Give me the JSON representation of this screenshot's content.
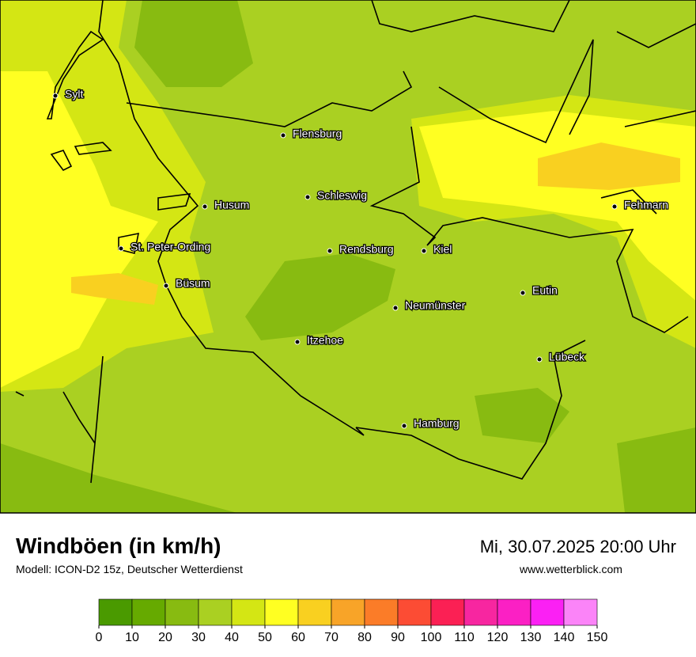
{
  "title": "Windböen (in km/h)",
  "model": "Modell: ICON-D2 15z, Deutscher Wetterdienst",
  "datetime": "Mi, 30.07.2025 20:00 Uhr",
  "website": "www.wetterblick.com",
  "cities": [
    "Sylt",
    "Flensburg",
    "Schleswig",
    "Husum",
    "St. Peter-Ording",
    "Rendsburg",
    "Kiel",
    "Fehmarn",
    "Büsum",
    "Eutin",
    "Neumünster",
    "Itzehoe",
    "Lübeck",
    "Hamburg"
  ],
  "legend": {
    "ticks": [
      0,
      10,
      20,
      30,
      40,
      50,
      60,
      70,
      80,
      90,
      100,
      110,
      120,
      130,
      140,
      150
    ],
    "colors": [
      "#4a9a00",
      "#66aa00",
      "#88bb11",
      "#aad022",
      "#d4e614",
      "#ffff22",
      "#f9d020",
      "#f8a428",
      "#fb7c28",
      "#fc4c34",
      "#fb2054",
      "#f726a0",
      "#fb20c4",
      "#fb20f4",
      "#fb84f8"
    ]
  }
}
